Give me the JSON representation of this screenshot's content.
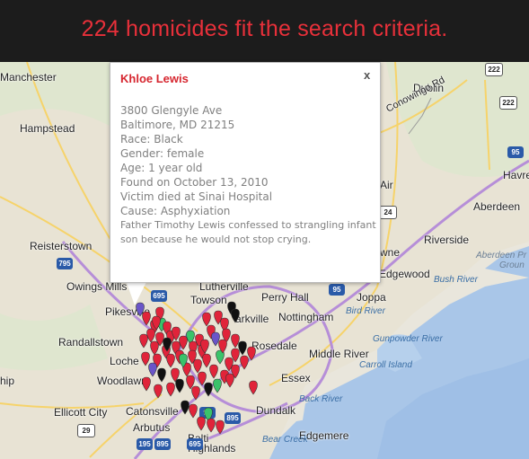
{
  "header": {
    "title": "224 homicides fit the search criteria."
  },
  "popup": {
    "name": "Khloe Lewis",
    "close_label": "x",
    "address_line1": "3800 Glengyle Ave",
    "address_line2": "Baltimore, MD 21215",
    "race": "Race: Black",
    "gender": "Gender: female",
    "age": "Age: 1 year old",
    "found": "Found on October 13, 2010",
    "died": "Victim died at Sinai Hospital",
    "cause": "Cause: Asphyxiation",
    "description": "Father Timothy Lewis confessed to strangling infant son because he would not stop crying."
  },
  "map": {
    "places": {
      "manchester": "Manchester",
      "hampstead": "Hampstead",
      "reisterstown": "Reisterstown",
      "owings_mills": "Owings Mills",
      "pikesville": "Pikesville",
      "randallstown": "Randallstown",
      "lochearn": "Loche",
      "woodlawn": "Woodlawn",
      "ship": "hip",
      "ellicott_city": "Ellicott City",
      "catonsville": "Catonsville",
      "arbutus": "Arbutus",
      "baltimore_highlands": "Baltimore Highlands",
      "baltimore_highlands_1": "Balti",
      "baltimore_highlands_2": "Highlands",
      "dublin": "Dublin",
      "havre": "Havre",
      "aberdeen": "Aberdeen",
      "air": "Air",
      "riverside": "Riverside",
      "towne": "wne",
      "edgewood": "Edgewood",
      "lutherville": "Lutherville",
      "towson": "Towson",
      "perry_hall": "Perry Hall",
      "joppa": "Joppa",
      "parkville": "arkville",
      "nottingham": "Nottingham",
      "rosedale": "Rosedale",
      "middle_river": "Middle River",
      "essex": "Essex",
      "dundalk": "Dundalk",
      "edgemere": "Edgemere",
      "conowingo_rd": "Conowingo Rd",
      "bird_river": "Bird River",
      "gunpowder_river": "Gunpowder River",
      "bush_river": "Bush River",
      "carroll_island": "Carroll Island",
      "back_river": "Back River",
      "bear_creek": "Bear Creek",
      "aberdeen_proving_1": "Aberdeen Pr",
      "aberdeen_proving_2": "Groun"
    },
    "shields": {
      "r222a": "222",
      "r222b": "222",
      "i95a": "95",
      "i95b": "95",
      "i95c": "95",
      "i795": "795",
      "i695a": "695",
      "i695b": "695",
      "i895a": "895",
      "i895b": "895",
      "i195": "195",
      "us29": "29",
      "r24": "24"
    },
    "marker_colors": {
      "red": "#e0243a",
      "black": "#111111",
      "green": "#3ac36a",
      "purple": "#6a55c8"
    }
  }
}
